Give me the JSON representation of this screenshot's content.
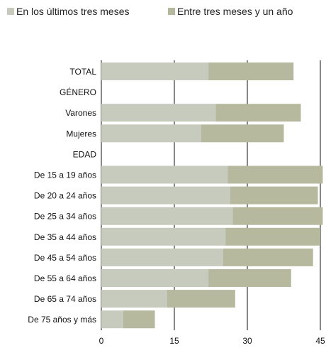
{
  "colors": {
    "series1": "#c7cbbe",
    "series2": "#b6b99e",
    "grid": "#111111",
    "background": "#ffffff"
  },
  "chart_data": {
    "type": "bar",
    "orientation": "horizontal",
    "stacked": true,
    "title": "",
    "xlabel": "",
    "ylabel": "",
    "xlim": [
      0,
      45
    ],
    "xticks": [
      0,
      15,
      30,
      45
    ],
    "grid": true,
    "legend_position": "top",
    "categories": [
      "TOTAL",
      "GÉNERO",
      "Varones",
      "Mujeres",
      "EDAD",
      "De 15 a 19 años",
      "De 20 a 24 años",
      "De 25 a 34 años",
      "De 35 a 44 años",
      "De 45 a 54 años",
      "De 55 a 64 años",
      "De 65 a 74 años",
      "De 75 años y más"
    ],
    "series": [
      {
        "name": "En los últimos tres meses",
        "values": [
          22,
          null,
          23.5,
          20.5,
          null,
          26,
          26.5,
          27,
          25.5,
          25,
          22,
          13.5,
          4.5
        ]
      },
      {
        "name": "Entre tres meses y un año",
        "values": [
          17.5,
          null,
          17.5,
          17,
          null,
          19.5,
          18,
          18.5,
          19.5,
          18.5,
          17,
          14,
          6.5
        ]
      }
    ]
  }
}
